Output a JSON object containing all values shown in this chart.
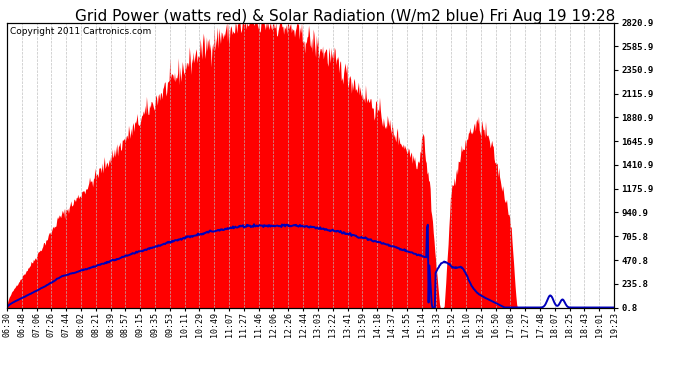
{
  "title": "Grid Power (watts red) & Solar Radiation (W/m2 blue) Fri Aug 19 19:28",
  "copyright": "Copyright 2011 Cartronics.com",
  "ylabel_right_ticks": [
    0.8,
    235.8,
    470.8,
    705.8,
    940.9,
    1175.9,
    1410.9,
    1645.9,
    1880.9,
    2115.9,
    2350.9,
    2585.9,
    2820.9
  ],
  "ymin": 0.8,
  "ymax": 2820.9,
  "bg_color": "#ffffff",
  "plot_bg_color": "#ffffff",
  "red_color": "#ff0000",
  "blue_color": "#0000bb",
  "grid_color": "#bbbbbb",
  "title_fontsize": 11,
  "copyright_fontsize": 6.5,
  "tick_fontsize": 6,
  "n_points": 780,
  "xtick_labels": [
    "06:30",
    "06:48",
    "07:06",
    "07:26",
    "07:44",
    "08:02",
    "08:21",
    "08:39",
    "08:57",
    "09:15",
    "09:35",
    "09:53",
    "10:11",
    "10:29",
    "10:49",
    "11:07",
    "11:27",
    "11:46",
    "12:06",
    "12:26",
    "12:44",
    "13:03",
    "13:22",
    "13:41",
    "13:59",
    "14:18",
    "14:37",
    "14:55",
    "15:14",
    "15:33",
    "15:52",
    "16:10",
    "16:32",
    "16:50",
    "17:08",
    "17:27",
    "17:48",
    "18:07",
    "18:25",
    "18:43",
    "19:01",
    "19:23"
  ]
}
